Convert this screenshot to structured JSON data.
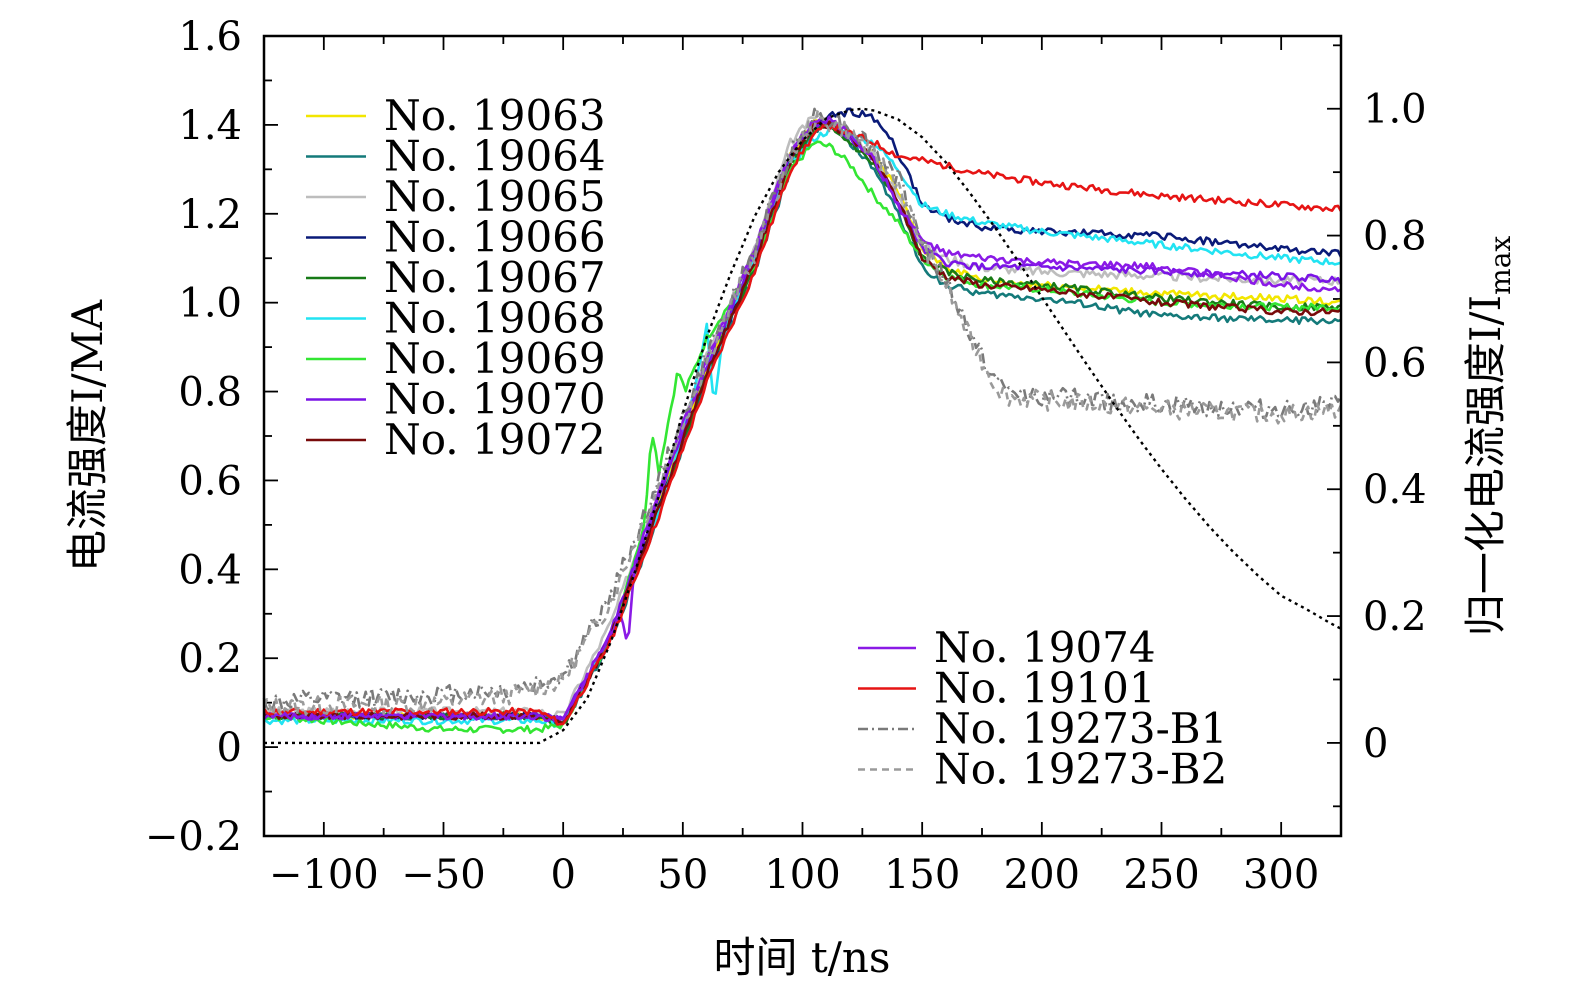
{
  "chart_data": {
    "type": "line",
    "title": "",
    "xlabel": "时间 t/ns",
    "ylabel": "电流强度I/MA",
    "y2label": "归一化电流强度I/I",
    "y2label_sub": "max",
    "xlim": [
      -125,
      325
    ],
    "ylim": [
      -0.2,
      1.6
    ],
    "y2lim": [
      -0.1468,
      1.1147
    ],
    "x_ticks": [
      -100,
      -50,
      0,
      50,
      100,
      150,
      200,
      250,
      300
    ],
    "x_tick_labels": [
      "−100",
      "−50",
      "0",
      "50",
      "100",
      "150",
      "200",
      "250",
      "300"
    ],
    "y_ticks": [
      -0.2,
      0,
      0.2,
      0.4,
      0.6,
      0.8,
      1.0,
      1.2,
      1.4,
      1.6
    ],
    "y_tick_labels": [
      "−0.2",
      "0",
      "0.2",
      "0.4",
      "0.6",
      "0.8",
      "1.0",
      "1.2",
      "1.4",
      "1.6"
    ],
    "y2_ticks": [
      0,
      0.2,
      0.4,
      0.6,
      0.8,
      1.0
    ],
    "y2_tick_labels": [
      "0",
      "0.2",
      "0.4",
      "0.6",
      "0.8",
      "1.0"
    ],
    "series": [
      {
        "name": "No. 19063",
        "color": "#f2e600",
        "dash": "solid",
        "noise": 0.008,
        "seed": 1,
        "x": [
          -125,
          -10,
          0,
          20,
          40,
          60,
          80,
          95,
          105,
          112,
          120,
          130,
          140,
          150,
          160,
          175,
          200,
          250,
          300,
          325
        ],
        "y": [
          0.07,
          0.07,
          0.06,
          0.25,
          0.55,
          0.85,
          1.1,
          1.33,
          1.41,
          1.4,
          1.37,
          1.33,
          1.25,
          1.12,
          1.08,
          1.05,
          1.04,
          1.02,
          1.01,
          1.0
        ]
      },
      {
        "name": "No. 19064",
        "color": "#147a7a",
        "dash": "solid",
        "noise": 0.008,
        "seed": 2,
        "x": [
          -125,
          -10,
          0,
          20,
          40,
          60,
          80,
          95,
          105,
          112,
          120,
          130,
          140,
          150,
          160,
          175,
          200,
          250,
          300,
          325
        ],
        "y": [
          0.07,
          0.07,
          0.05,
          0.24,
          0.52,
          0.83,
          1.07,
          1.3,
          1.39,
          1.4,
          1.36,
          1.3,
          1.2,
          1.08,
          1.04,
          1.02,
          1.01,
          0.97,
          0.96,
          0.96
        ]
      },
      {
        "name": "No. 19065",
        "color": "#bdbdbd",
        "dash": "solid",
        "noise": 0.01,
        "seed": 3,
        "x": [
          -125,
          -10,
          0,
          20,
          40,
          60,
          80,
          95,
          105,
          112,
          120,
          130,
          140,
          150,
          160,
          175,
          200,
          250,
          300,
          325
        ],
        "y": [
          0.08,
          0.08,
          0.07,
          0.28,
          0.58,
          0.88,
          1.12,
          1.36,
          1.42,
          1.41,
          1.38,
          1.33,
          1.24,
          1.13,
          1.1,
          1.08,
          1.07,
          1.06,
          1.05,
          1.05
        ]
      },
      {
        "name": "No. 19066",
        "color": "#0a1a78",
        "dash": "solid",
        "noise": 0.008,
        "seed": 4,
        "x": [
          -125,
          -10,
          0,
          20,
          40,
          60,
          80,
          95,
          105,
          112,
          120,
          128,
          136,
          145,
          150,
          160,
          175,
          200,
          250,
          300,
          325
        ],
        "y": [
          0.07,
          0.07,
          0.06,
          0.25,
          0.54,
          0.84,
          1.09,
          1.32,
          1.4,
          1.42,
          1.43,
          1.42,
          1.38,
          1.28,
          1.22,
          1.19,
          1.17,
          1.16,
          1.15,
          1.12,
          1.11
        ]
      },
      {
        "name": "No. 19067",
        "color": "#177a17",
        "dash": "solid",
        "noise": 0.008,
        "seed": 5,
        "x": [
          -125,
          -10,
          0,
          20,
          40,
          60,
          80,
          95,
          105,
          112,
          120,
          130,
          140,
          150,
          160,
          175,
          200,
          250,
          300,
          325
        ],
        "y": [
          0.07,
          0.07,
          0.05,
          0.25,
          0.53,
          0.84,
          1.08,
          1.31,
          1.39,
          1.39,
          1.36,
          1.31,
          1.22,
          1.1,
          1.07,
          1.05,
          1.04,
          1.01,
          0.99,
          0.99
        ]
      },
      {
        "name": "No. 19068",
        "color": "#22e3f2",
        "dash": "solid",
        "noise": 0.008,
        "seed": 6,
        "x": [
          -125,
          -10,
          0,
          20,
          40,
          55,
          60,
          63,
          66,
          70,
          80,
          95,
          105,
          112,
          120,
          130,
          140,
          150,
          160,
          175,
          200,
          250,
          300,
          325
        ],
        "y": [
          0.06,
          0.06,
          0.05,
          0.25,
          0.53,
          0.8,
          0.95,
          0.76,
          0.9,
          0.98,
          1.1,
          1.31,
          1.37,
          1.39,
          1.38,
          1.36,
          1.3,
          1.22,
          1.2,
          1.18,
          1.16,
          1.13,
          1.1,
          1.09
        ]
      },
      {
        "name": "No. 19069",
        "color": "#33e633",
        "dash": "solid",
        "noise": 0.008,
        "seed": 7,
        "x": [
          -125,
          -50,
          -10,
          0,
          20,
          34,
          37,
          40,
          48,
          51,
          60,
          80,
          95,
          105,
          112,
          120,
          130,
          140,
          150,
          160,
          175,
          200,
          250,
          300,
          325
        ],
        "y": [
          0.07,
          0.04,
          0.04,
          0.05,
          0.25,
          0.5,
          0.72,
          0.62,
          0.85,
          0.8,
          0.92,
          1.08,
          1.3,
          1.36,
          1.35,
          1.31,
          1.24,
          1.18,
          1.1,
          1.06,
          1.04,
          1.03,
          1.0,
          0.99,
          0.99
        ]
      },
      {
        "name": "No. 19070",
        "color": "#7a14e6",
        "dash": "solid",
        "noise": 0.008,
        "seed": 8,
        "x": [
          -125,
          -10,
          0,
          20,
          40,
          60,
          80,
          95,
          105,
          112,
          120,
          130,
          140,
          150,
          160,
          175,
          200,
          250,
          300,
          325
        ],
        "y": [
          0.07,
          0.07,
          0.06,
          0.26,
          0.56,
          0.86,
          1.11,
          1.34,
          1.4,
          1.4,
          1.37,
          1.32,
          1.22,
          1.12,
          1.09,
          1.08,
          1.08,
          1.07,
          1.06,
          1.05
        ]
      },
      {
        "name": "No. 19072",
        "color": "#780a0a",
        "dash": "solid",
        "noise": 0.008,
        "seed": 9,
        "x": [
          -125,
          -10,
          0,
          20,
          40,
          60,
          80,
          95,
          105,
          112,
          120,
          130,
          140,
          150,
          160,
          175,
          200,
          250,
          300,
          325
        ],
        "y": [
          0.07,
          0.07,
          0.05,
          0.25,
          0.54,
          0.84,
          1.09,
          1.32,
          1.4,
          1.4,
          1.37,
          1.32,
          1.23,
          1.1,
          1.06,
          1.04,
          1.03,
          1.0,
          0.98,
          0.98
        ]
      },
      {
        "name": "No. 19074",
        "color": "#8a1ae6",
        "dash": "solid",
        "noise": 0.008,
        "seed": 10,
        "x": [
          -125,
          -10,
          0,
          20,
          24,
          27,
          30,
          40,
          60,
          80,
          95,
          105,
          112,
          120,
          130,
          140,
          150,
          160,
          175,
          200,
          250,
          300,
          325
        ],
        "y": [
          0.07,
          0.07,
          0.06,
          0.26,
          0.3,
          0.22,
          0.42,
          0.58,
          0.87,
          1.12,
          1.34,
          1.41,
          1.41,
          1.38,
          1.32,
          1.22,
          1.14,
          1.11,
          1.1,
          1.09,
          1.08,
          1.04,
          1.03
        ]
      },
      {
        "name": "No. 19101",
        "color": "#e61414",
        "dash": "solid",
        "noise": 0.008,
        "seed": 11,
        "x": [
          -125,
          -10,
          0,
          20,
          40,
          60,
          80,
          95,
          105,
          112,
          120,
          130,
          140,
          150,
          175,
          200,
          250,
          300,
          325
        ],
        "y": [
          0.08,
          0.08,
          0.05,
          0.24,
          0.52,
          0.82,
          1.07,
          1.3,
          1.38,
          1.4,
          1.38,
          1.36,
          1.33,
          1.32,
          1.29,
          1.27,
          1.24,
          1.22,
          1.21
        ]
      },
      {
        "name": "No. 19273-B1",
        "color": "#7a7a7a",
        "dash": "dashdot",
        "noise": 0.022,
        "seed": 12,
        "x": [
          -125,
          -50,
          -20,
          0,
          20,
          40,
          60,
          80,
          95,
          105,
          115,
          125,
          140,
          150,
          160,
          170,
          180,
          185,
          200,
          250,
          300,
          325
        ],
        "y": [
          0.1,
          0.12,
          0.13,
          0.16,
          0.34,
          0.6,
          0.88,
          1.12,
          1.34,
          1.42,
          1.41,
          1.37,
          1.28,
          1.14,
          1.05,
          0.93,
          0.83,
          0.8,
          0.79,
          0.77,
          0.76,
          0.77
        ]
      },
      {
        "name": "No. 19273-B2",
        "color": "#9a9a9a",
        "dash": "dashed",
        "noise": 0.022,
        "seed": 13,
        "x": [
          -125,
          -50,
          -20,
          0,
          20,
          40,
          60,
          80,
          95,
          105,
          115,
          125,
          140,
          150,
          160,
          170,
          180,
          185,
          200,
          250,
          300,
          325
        ],
        "y": [
          0.09,
          0.1,
          0.12,
          0.15,
          0.33,
          0.59,
          0.87,
          1.11,
          1.33,
          1.41,
          1.4,
          1.36,
          1.27,
          1.13,
          1.04,
          0.92,
          0.82,
          0.79,
          0.78,
          0.76,
          0.75,
          0.76
        ]
      }
    ],
    "reference_curve": {
      "name": "normalized",
      "axis": "y2",
      "color": "#000000",
      "dash": "dotted",
      "x": [
        -125,
        -10,
        0,
        10,
        20,
        30,
        40,
        50,
        60,
        70,
        80,
        90,
        100,
        110,
        120,
        125,
        130,
        140,
        150,
        160,
        170,
        180,
        190,
        200,
        210,
        220,
        230,
        240,
        250,
        260,
        270,
        280,
        290,
        300,
        310,
        320,
        325
      ],
      "y": [
        0,
        0,
        0.02,
        0.07,
        0.16,
        0.27,
        0.39,
        0.52,
        0.64,
        0.74,
        0.83,
        0.9,
        0.95,
        0.985,
        0.998,
        1.0,
        0.997,
        0.983,
        0.955,
        0.915,
        0.867,
        0.815,
        0.76,
        0.703,
        0.646,
        0.59,
        0.535,
        0.482,
        0.432,
        0.385,
        0.341,
        0.301,
        0.265,
        0.232,
        0.212,
        0.19,
        0.18
      ]
    },
    "legend": [
      {
        "position": "top-left",
        "entries": [
          "No. 19063",
          "No. 19064",
          "No. 19065",
          "No. 19066",
          "No. 19067",
          "No. 19068",
          "No. 19069",
          "No. 19070",
          "No. 19072"
        ]
      },
      {
        "position": "bottom-right",
        "entries": [
          "No. 19074",
          "No. 19101",
          "No. 19273-B1",
          "No. 19273-B2"
        ]
      }
    ]
  }
}
